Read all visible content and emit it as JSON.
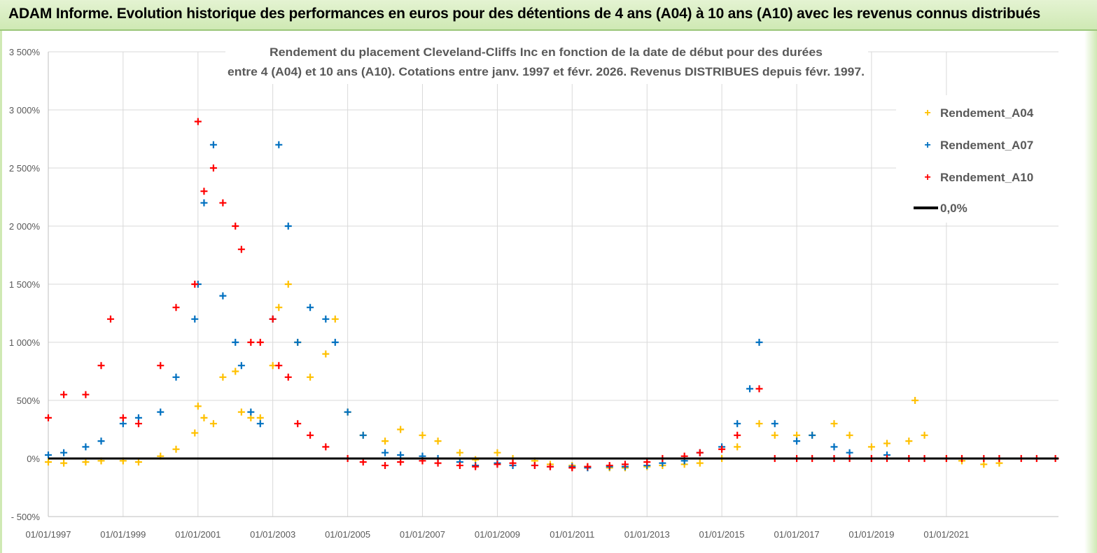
{
  "header": {
    "banner": "ADAM Informe. Evolution historique des performances en euros pour des détentions de 4 ans (A04) à 10 ans (A10) avec les revenus connus distribués"
  },
  "chart_data": {
    "type": "scatter",
    "title_line1": "Rendement du placement Cleveland-Cliffs Inc en fonction de la date de début pour des durées",
    "title_line2": "entre 4 (A04) et 10 ans (A10). Cotations entre janv. 1997 et févr. 2026. Revenus DISTRIBUES depuis févr. 1997.",
    "xlim": [
      "1997-01-01",
      "2023-12-31"
    ],
    "ylim": [
      -500,
      3500
    ],
    "y_ticks": [
      -500,
      0,
      500,
      1000,
      1500,
      2000,
      2500,
      3000,
      3500
    ],
    "y_tick_labels": [
      "- 500%",
      "0%",
      "500%",
      "1 000%",
      "1 500%",
      "2 000%",
      "2 500%",
      "3 000%",
      "3 500%"
    ],
    "x_tick_labels": [
      "01/01/1997",
      "01/01/1999",
      "01/01/2001",
      "01/01/2003",
      "01/01/2005",
      "01/01/2007",
      "01/01/2009",
      "01/01/2011",
      "01/01/2013",
      "01/01/2015",
      "01/01/2017",
      "01/01/2019",
      "01/01/2021"
    ],
    "grid": true,
    "legend_position": "top-right",
    "legend": [
      "Rendement_A04",
      "Rendement_A07",
      "Rendement_A10",
      "0,0%"
    ],
    "zero_line": {
      "name": "0,0%",
      "value": 0,
      "color": "#000000"
    },
    "series": [
      {
        "name": "Rendement_A04",
        "color": "#ffc000",
        "marker": "+",
        "x": [
          "1997-01-01",
          "1997-06-01",
          "1998-01-01",
          "1998-06-01",
          "1999-01-01",
          "1999-06-01",
          "2000-01-01",
          "2000-06-01",
          "2000-12-01",
          "2001-01-01",
          "2001-03-01",
          "2001-06-01",
          "2001-09-01",
          "2002-01-01",
          "2002-03-01",
          "2002-06-01",
          "2002-09-01",
          "2003-01-01",
          "2003-03-01",
          "2003-06-01",
          "2003-09-01",
          "2004-01-01",
          "2004-06-01",
          "2004-09-01",
          "2005-01-01",
          "2005-06-01",
          "2006-01-01",
          "2006-06-01",
          "2007-01-01",
          "2007-06-01",
          "2008-01-01",
          "2008-06-01",
          "2009-01-01",
          "2009-06-01",
          "2010-01-01",
          "2010-06-01",
          "2011-01-01",
          "2011-06-01",
          "2012-01-01",
          "2012-06-01",
          "2013-01-01",
          "2013-06-01",
          "2014-01-01",
          "2014-06-01",
          "2015-01-01",
          "2015-06-01",
          "2016-01-01",
          "2016-06-01",
          "2017-01-01",
          "2017-06-01",
          "2018-01-01",
          "2018-06-01",
          "2019-01-01",
          "2019-06-01",
          "2020-01-01",
          "2020-03-01",
          "2020-06-01",
          "2021-01-01",
          "2021-06-01",
          "2022-01-01",
          "2022-06-01"
        ],
        "y": [
          -30,
          -40,
          -30,
          -20,
          -20,
          -30,
          20,
          80,
          220,
          450,
          350,
          300,
          700,
          750,
          400,
          350,
          350,
          800,
          1300,
          1500,
          1000,
          700,
          900,
          1200,
          400,
          200,
          150,
          250,
          200,
          150,
          50,
          -10,
          50,
          0,
          -20,
          -50,
          -60,
          -70,
          -80,
          -80,
          -70,
          -60,
          -50,
          -40,
          0,
          100,
          300,
          200,
          200,
          200,
          300,
          200,
          100,
          130,
          150,
          500,
          200,
          0,
          -20,
          -50,
          -40
        ]
      },
      {
        "name": "Rendement_A07",
        "color": "#0070c0",
        "marker": "+",
        "x": [
          "1997-01-01",
          "1997-06-01",
          "1998-01-01",
          "1998-06-01",
          "1999-01-01",
          "1999-06-01",
          "2000-01-01",
          "2000-06-01",
          "2000-12-01",
          "2001-01-01",
          "2001-03-01",
          "2001-06-01",
          "2001-09-01",
          "2002-01-01",
          "2002-03-01",
          "2002-06-01",
          "2002-09-01",
          "2003-01-01",
          "2003-03-01",
          "2003-06-01",
          "2003-09-01",
          "2004-01-01",
          "2004-06-01",
          "2004-09-01",
          "2005-01-01",
          "2005-06-01",
          "2006-01-01",
          "2006-06-01",
          "2007-01-01",
          "2007-06-01",
          "2008-01-01",
          "2008-06-01",
          "2009-01-01",
          "2009-06-01",
          "2010-01-01",
          "2010-06-01",
          "2011-01-01",
          "2011-06-01",
          "2012-01-01",
          "2012-06-01",
          "2013-01-01",
          "2013-06-01",
          "2014-01-01",
          "2014-06-01",
          "2015-01-01",
          "2015-06-01",
          "2015-10-01",
          "2016-01-01",
          "2016-06-01",
          "2017-01-01",
          "2017-06-01",
          "2018-01-01",
          "2018-06-01",
          "2019-01-01",
          "2019-06-01"
        ],
        "y": [
          30,
          50,
          100,
          150,
          300,
          350,
          400,
          700,
          1200,
          1500,
          2200,
          2700,
          1400,
          1000,
          800,
          400,
          300,
          1200,
          2700,
          2000,
          1000,
          1300,
          1200,
          1000,
          400,
          200,
          50,
          30,
          20,
          0,
          -30,
          -60,
          -40,
          -60,
          -60,
          -70,
          -70,
          -80,
          -70,
          -70,
          -60,
          -40,
          -20,
          50,
          100,
          300,
          600,
          1000,
          300,
          150,
          200,
          100,
          50,
          0,
          30
        ]
      },
      {
        "name": "Rendement_A10",
        "color": "#ff0000",
        "marker": "+",
        "x": [
          "1997-01-01",
          "1997-06-01",
          "1998-01-01",
          "1998-06-01",
          "1998-09-01",
          "1999-01-01",
          "1999-06-01",
          "2000-01-01",
          "2000-06-01",
          "2000-12-01",
          "2001-01-01",
          "2001-03-01",
          "2001-06-01",
          "2001-09-01",
          "2002-01-01",
          "2002-03-01",
          "2002-06-01",
          "2002-09-01",
          "2003-01-01",
          "2003-03-01",
          "2003-06-01",
          "2003-09-01",
          "2004-01-01",
          "2004-06-01",
          "2005-01-01",
          "2005-06-01",
          "2006-01-01",
          "2006-06-01",
          "2007-01-01",
          "2007-06-01",
          "2008-01-01",
          "2008-06-01",
          "2009-01-01",
          "2009-06-01",
          "2010-01-01",
          "2010-06-01",
          "2011-01-01",
          "2011-06-01",
          "2012-01-01",
          "2012-06-01",
          "2013-01-01",
          "2013-06-01",
          "2014-01-01",
          "2014-06-01",
          "2015-01-01",
          "2015-06-01",
          "2016-01-01",
          "2016-06-01",
          "2017-01-01",
          "2017-06-01",
          "2018-01-01",
          "2018-06-01",
          "2019-01-01",
          "2019-06-01",
          "2020-01-01",
          "2020-06-01",
          "2021-01-01",
          "2021-06-01",
          "2022-01-01",
          "2022-06-01",
          "2023-01-01",
          "2023-06-01",
          "2023-12-01"
        ],
        "y": [
          350,
          550,
          550,
          800,
          1200,
          350,
          300,
          800,
          1300,
          1500,
          2900,
          2300,
          2500,
          2200,
          2000,
          1800,
          1000,
          1000,
          1200,
          800,
          700,
          300,
          200,
          100,
          0,
          -30,
          -60,
          -30,
          -20,
          -40,
          -60,
          -70,
          -50,
          -40,
          -60,
          -70,
          -80,
          -70,
          -60,
          -50,
          -30,
          0,
          20,
          50,
          80,
          200,
          600,
          0,
          0,
          0,
          0,
          0,
          0,
          0,
          0,
          0,
          0,
          0,
          0,
          0,
          0,
          0,
          0
        ]
      }
    ]
  }
}
